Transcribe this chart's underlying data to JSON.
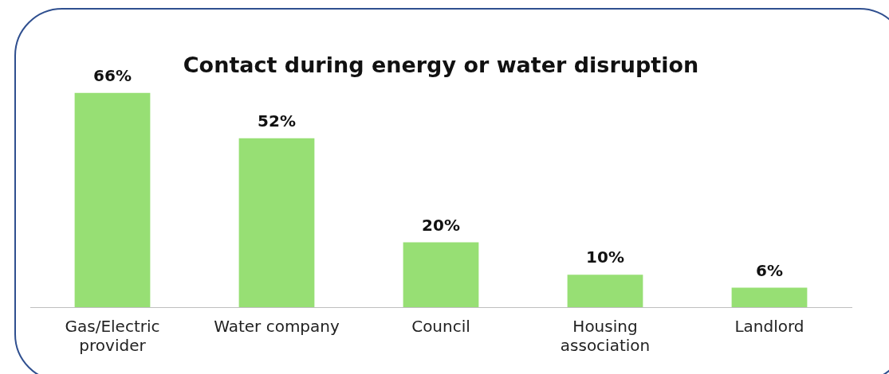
{
  "chart_data": {
    "type": "bar",
    "title": "Contact during energy or water disruption",
    "categories": [
      "Gas/Electric provider",
      "Water company",
      "Council",
      "Housing association",
      "Landlord"
    ],
    "values": [
      66,
      52,
      20,
      10,
      6
    ],
    "value_labels": [
      "66%",
      "52%",
      "20%",
      "10%",
      "6%"
    ],
    "color": "#97df74",
    "grid": false,
    "legend": false
  }
}
